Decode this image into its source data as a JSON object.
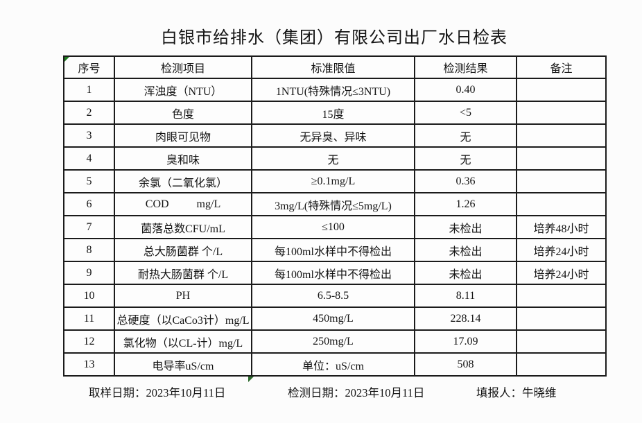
{
  "title": "白银市给排水（集团）有限公司出厂水日检表",
  "table": {
    "headers": [
      "序号",
      "检测项目",
      "标准限值",
      "检测结果",
      "备注"
    ],
    "column_names": [
      "index",
      "item",
      "standard-limit",
      "result",
      "remark"
    ],
    "rows": [
      [
        "1",
        "浑浊度（NTU）",
        "1NTU(特殊情况≤3NTU)",
        "0.40",
        ""
      ],
      [
        "2",
        "色度",
        "15度",
        "<5",
        ""
      ],
      [
        "3",
        "肉眼可见物",
        "无异臭、异味",
        "无",
        ""
      ],
      [
        "4",
        "臭和味",
        "无",
        "无",
        ""
      ],
      [
        "5",
        "余氯（二氧化氯）",
        "≥0.1mg/L",
        "0.36",
        ""
      ],
      [
        "6",
        "COD          mg/L",
        "3mg/L(特殊情况≤5mg/L)",
        "1.26",
        ""
      ],
      [
        "7",
        "菌落总数CFU/mL",
        "≤100",
        "未检出",
        "培养48小时"
      ],
      [
        "8",
        "总大肠菌群 个/L",
        "每100ml水样中不得检出",
        "未检出",
        "培养24小时"
      ],
      [
        "9",
        "耐热大肠菌群 个/L",
        "每100ml水样中不得检出",
        "未检出",
        "培养24小时"
      ],
      [
        "10",
        "PH",
        "6.5-8.5",
        "8.11",
        ""
      ],
      [
        "11",
        "总硬度（以CaCo3计）mg/L",
        "450mg/L",
        "228.14",
        ""
      ],
      [
        "12",
        "氯化物（以CL-计）mg/L",
        "250mg/L",
        "17.09",
        ""
      ],
      [
        "13",
        "电导率uS/cm",
        "单位：uS/cm",
        "508",
        ""
      ]
    ]
  },
  "footer": {
    "sampling_date": "取样日期：2023年10月11日",
    "test_date": "检测日期：2023年10月11日",
    "reporter": "填报人：牛晓维"
  },
  "colors": {
    "marker_green": "#1e7b1e",
    "border": "#1b1b1b",
    "text": "#141414",
    "background": "#fcfcfc"
  }
}
